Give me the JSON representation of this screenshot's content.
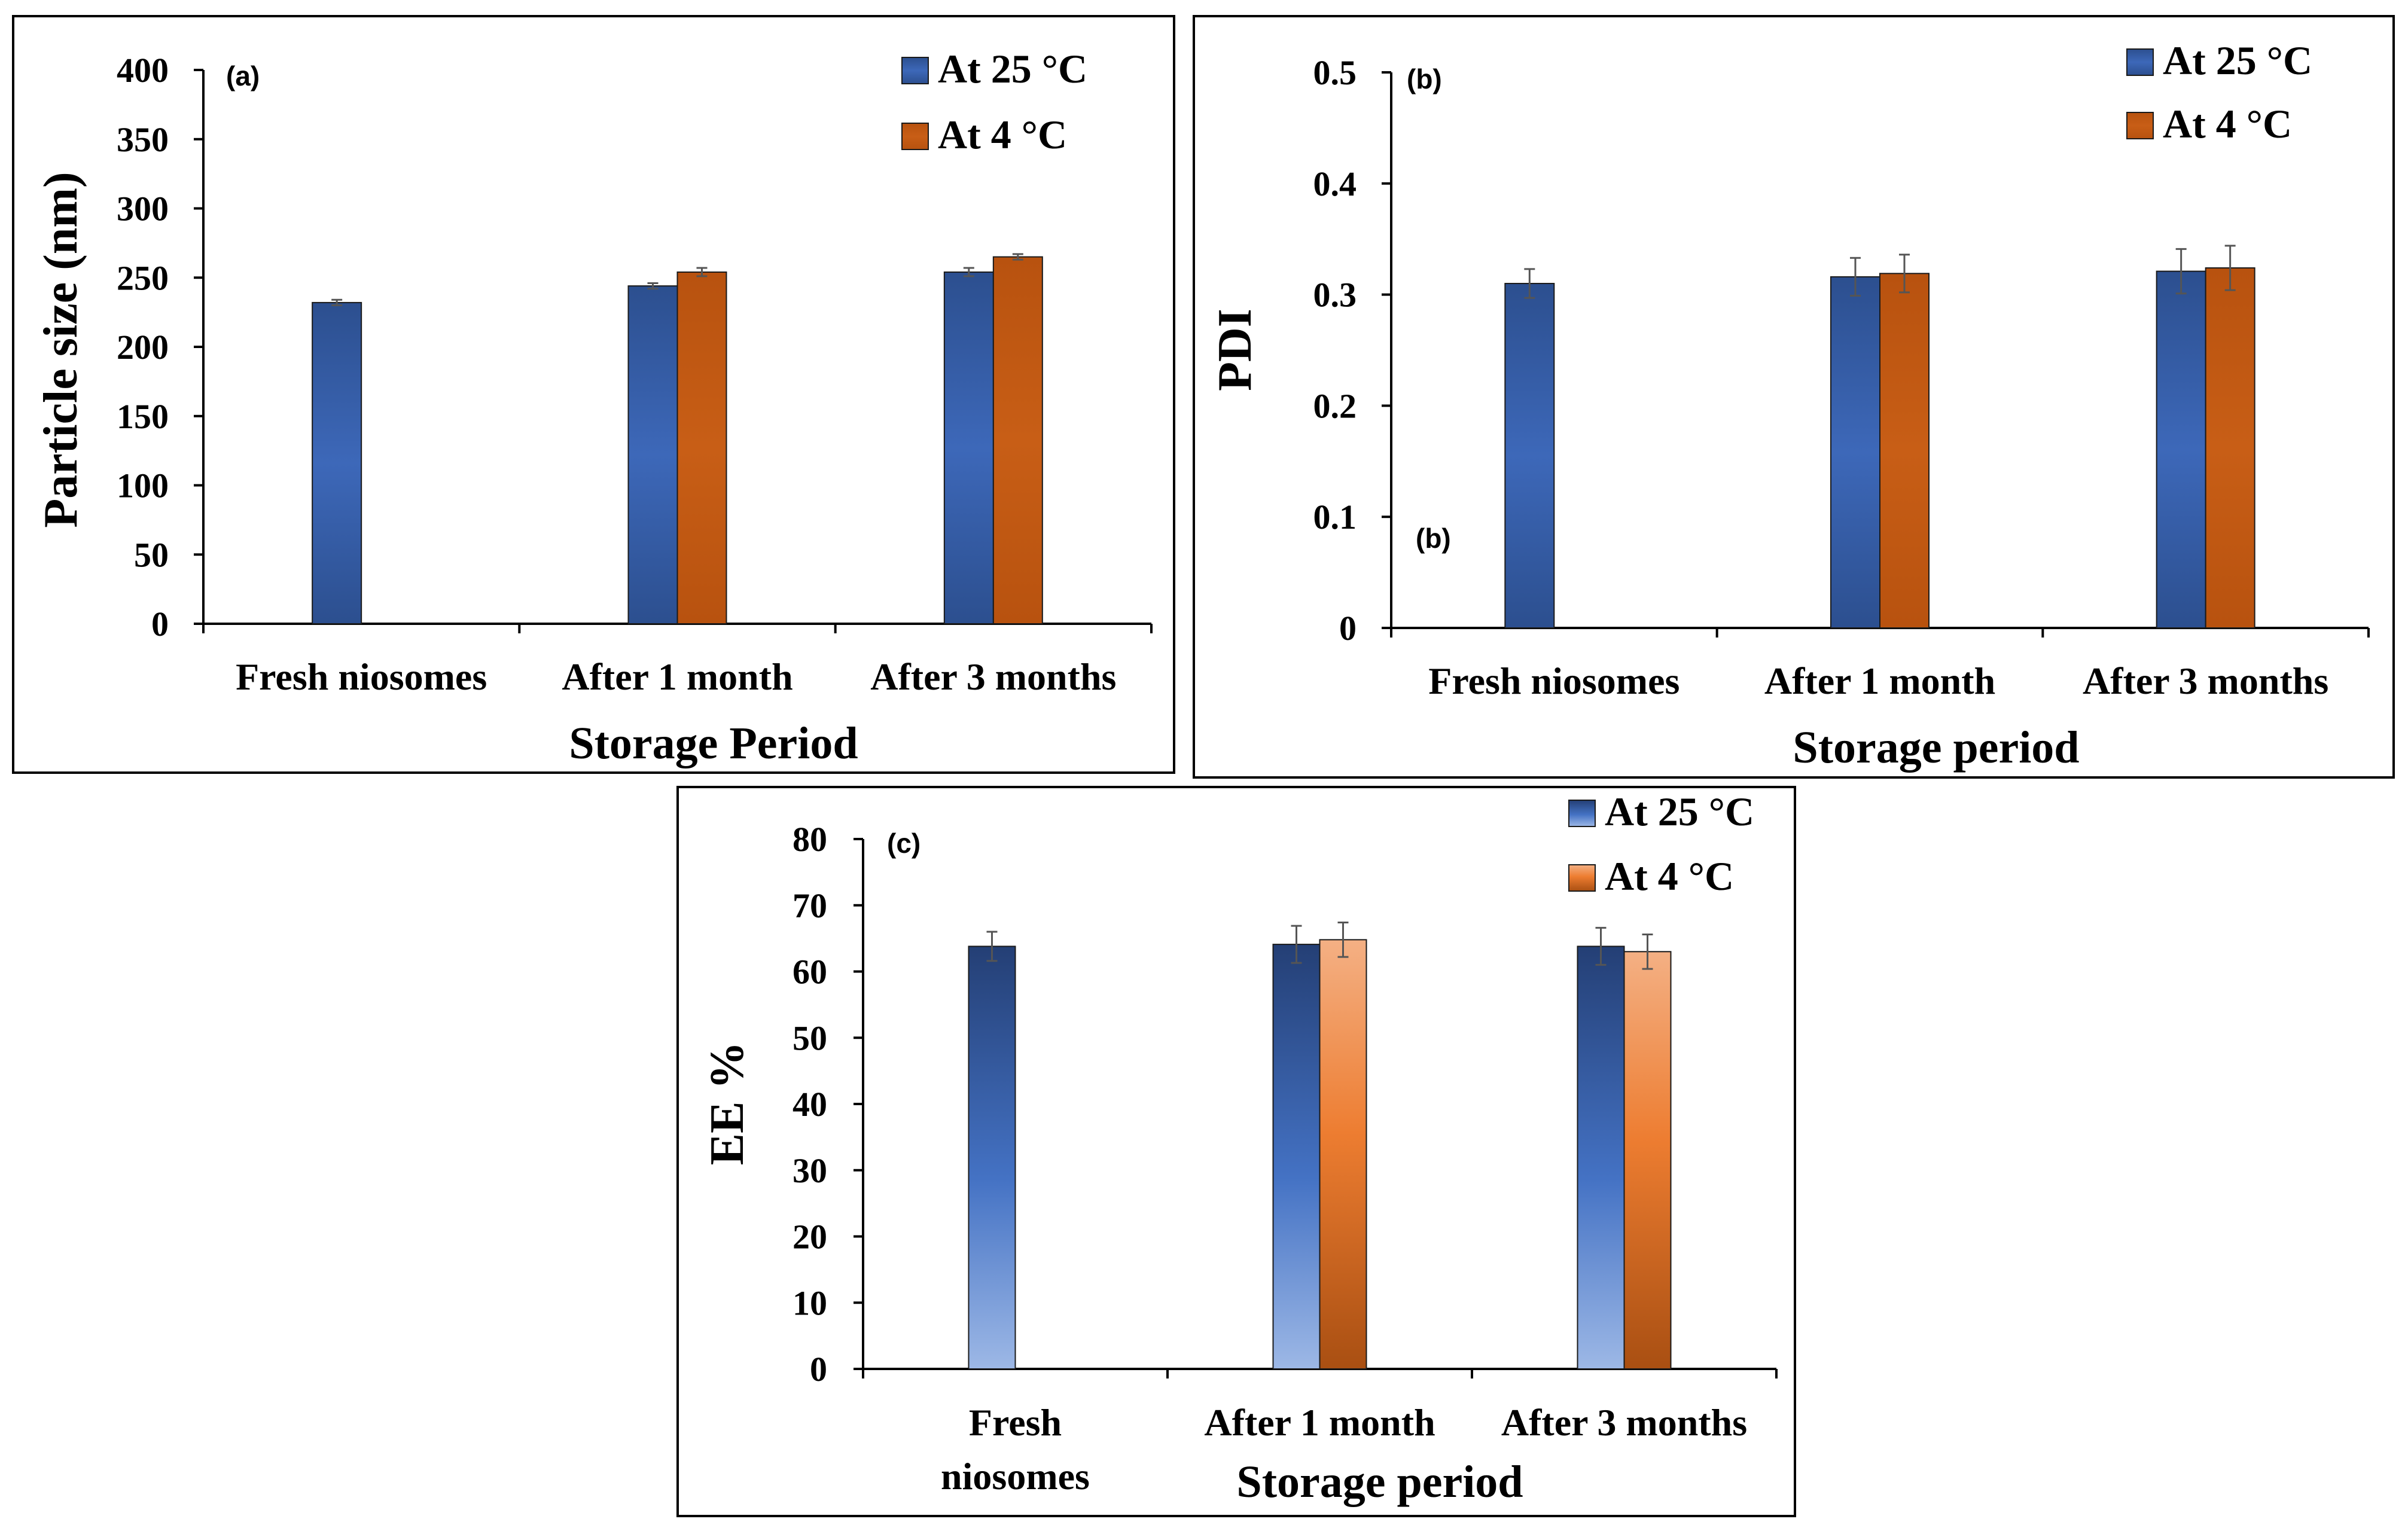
{
  "chart_data": [
    {
      "id": "a",
      "type": "bar",
      "panel_label": "(a)",
      "title": "",
      "xlabel": "Storage Period",
      "ylabel": "Particle size (nm)",
      "ylim": [
        0,
        400
      ],
      "yticks": [
        "0",
        "50",
        "100",
        "150",
        "200",
        "250",
        "300",
        "350",
        "400"
      ],
      "categories": [
        [
          "Fresh niosomes"
        ],
        [
          "After 1 month"
        ],
        [
          "After 3 months"
        ]
      ],
      "series": [
        {
          "name": "At 25 °C",
          "color": "#3A5FA8",
          "values": [
            232,
            244,
            254
          ],
          "errors": [
            2,
            2,
            3
          ]
        },
        {
          "name": "At 4 °C",
          "color": "#C55A11",
          "values": [
            null,
            254,
            265
          ],
          "errors": [
            null,
            3,
            2
          ]
        }
      ],
      "legend": "top-right"
    },
    {
      "id": "b",
      "type": "bar",
      "panel_label": "(b)",
      "extra_label": "(b)",
      "title": "",
      "xlabel": "Storage period",
      "ylabel": "PDI",
      "ylim": [
        0,
        0.5
      ],
      "yticks": [
        "0",
        "0.1",
        "0.2",
        "0.3",
        "0.4",
        "0.5"
      ],
      "categories": [
        [
          "Fresh niosomes"
        ],
        [
          "After 1 month"
        ],
        [
          "After 3 months"
        ]
      ],
      "series": [
        {
          "name": "At 25 °C",
          "color": "#3A5FA8",
          "values": [
            0.31,
            0.316,
            0.321
          ],
          "errors": [
            0.013,
            0.017,
            0.02
          ]
        },
        {
          "name": "At 4 °C",
          "color": "#C55A11",
          "values": [
            null,
            0.319,
            0.324
          ],
          "errors": [
            null,
            0.017,
            0.02
          ]
        }
      ],
      "legend": "top-right"
    },
    {
      "id": "c",
      "type": "bar",
      "panel_label": "(c)",
      "title": "",
      "xlabel": "Storage period",
      "ylabel": "EE %",
      "ylim": [
        0,
        80
      ],
      "yticks": [
        "0",
        "10",
        "20",
        "30",
        "40",
        "50",
        "60",
        "70",
        "80"
      ],
      "categories": [
        [
          "Fresh",
          "niosomes"
        ],
        [
          "After 1 month"
        ],
        [
          "After 3 months"
        ]
      ],
      "series": [
        {
          "name": "At 25 °C",
          "color": "#3A5FA8",
          "values": [
            63.8,
            64.1,
            63.8
          ],
          "errors": [
            2.2,
            2.8,
            2.8
          ]
        },
        {
          "name": "At 4 °C",
          "color": "#ED7D31",
          "values": [
            null,
            64.8,
            63
          ],
          "errors": [
            null,
            2.6,
            2.6
          ]
        }
      ],
      "legend": "top-right"
    }
  ]
}
